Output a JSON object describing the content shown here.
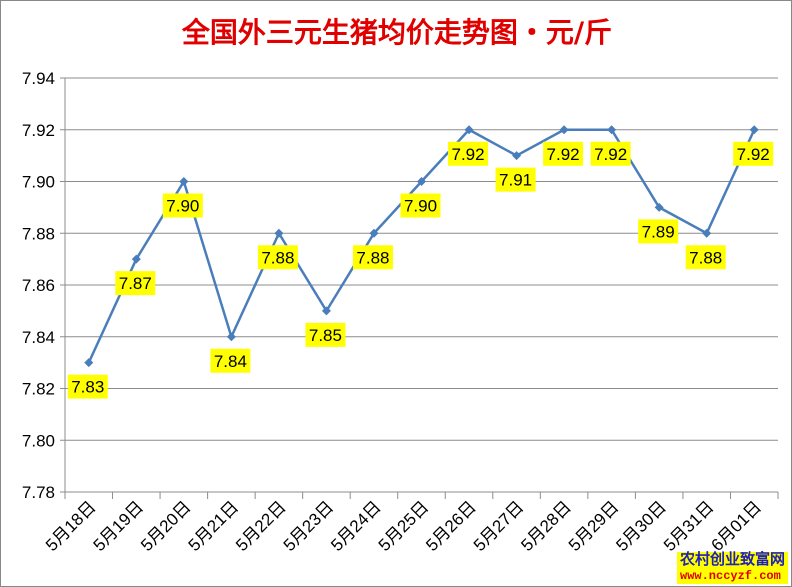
{
  "chart_data": {
    "type": "line",
    "title": "全国外三元生猪均价走势图・元/斤",
    "categories": [
      "5月18日",
      "5月19日",
      "5月20日",
      "5月21日",
      "5月22日",
      "5月23日",
      "5月24日",
      "5月25日",
      "5月26日",
      "5月27日",
      "5月28日",
      "5月29日",
      "5月30日",
      "5月31日",
      "6月01日"
    ],
    "values": [
      7.83,
      7.87,
      7.9,
      7.84,
      7.88,
      7.85,
      7.88,
      7.9,
      7.92,
      7.91,
      7.92,
      7.92,
      7.89,
      7.88,
      7.92
    ],
    "ylim": [
      7.78,
      7.94
    ],
    "yticks": [
      "7.78",
      "7.80",
      "7.82",
      "7.84",
      "7.86",
      "7.88",
      "7.90",
      "7.92",
      "7.94"
    ],
    "grid": true,
    "line_color": "#4a7ebb",
    "label_bg": "#ffff00"
  },
  "watermark": {
    "line1": "农村创业致富网",
    "line2": "www.nccyzf.com"
  }
}
